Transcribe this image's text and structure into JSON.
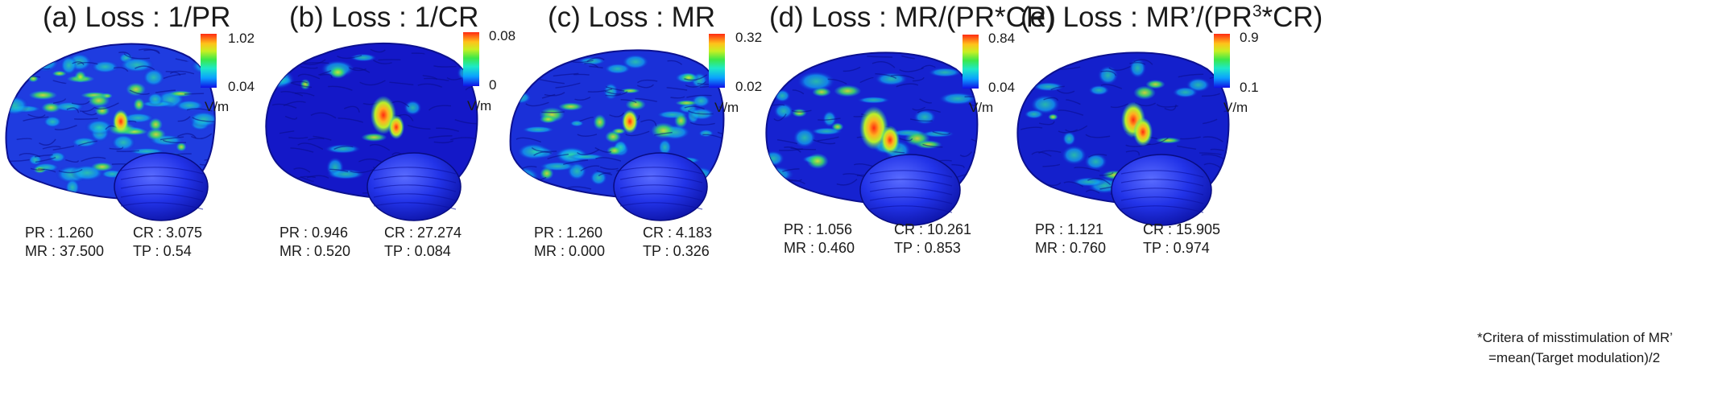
{
  "panels": [
    {
      "title": "(a) Loss : 1/PR",
      "colorbar": {
        "max": "1.02",
        "min": "0.04",
        "unit": "V/m"
      },
      "stats": {
        "pr": "PR  : 1.260",
        "cr": "CR : 3.075",
        "mr": "MR : 37.500",
        "tp": "TP : 0.54"
      }
    },
    {
      "title": "(b) Loss : 1/CR",
      "colorbar": {
        "max": "0.08",
        "min": "0",
        "unit": "V/m"
      },
      "stats": {
        "pr": "PR  : 0.946",
        "cr": "CR : 27.274",
        "mr": "MR : 0.520",
        "tp": "TP : 0.084"
      }
    },
    {
      "title": "(c) Loss : MR",
      "colorbar": {
        "max": "0.32",
        "min": "0.02",
        "unit": "V/m"
      },
      "stats": {
        "pr": "PR  : 1.260",
        "cr": "CR : 4.183",
        "mr": "MR : 0.000",
        "tp": "TP : 0.326"
      }
    },
    {
      "title": "(d) Loss : MR/(PR*CR)",
      "colorbar": {
        "max": "0.84",
        "min": "0.04",
        "unit": "V/m"
      },
      "stats": {
        "pr": "PR  : 1.056",
        "cr": "CR : 10.261",
        "mr": "MR : 0.460",
        "tp": "TP : 0.853"
      }
    },
    {
      "title_prefix": "(e) Loss : MR’/(PR",
      "title_sup": "3",
      "title_suffix": "*CR)",
      "colorbar": {
        "max": "0.9",
        "min": "0.1",
        "unit": "V/m"
      },
      "stats": {
        "pr": "PR  : 1.121",
        "cr": "CR : 15.905",
        "mr": "MR : 0.760",
        "tp": "TP : 0.974"
      }
    }
  ],
  "footnote": {
    "line1": "*Critera of misstimulation of MR’",
    "line2": "=mean(Target modulation)/2"
  },
  "colors": {
    "cortex_base": "#1a1ad8",
    "cerebellum": "#1e2ee6",
    "hotspot": "#ff3a10"
  }
}
